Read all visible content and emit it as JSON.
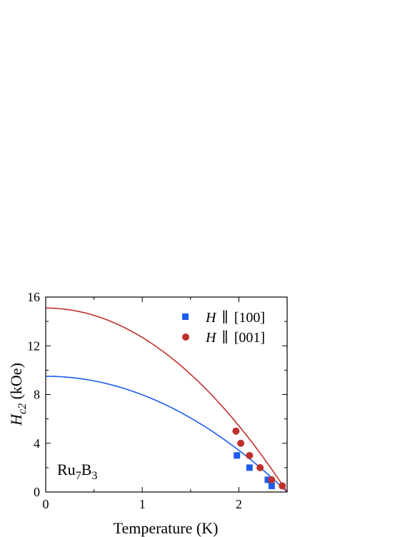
{
  "chart_data": {
    "type": "scatter",
    "x_label": "Temperature  (K)",
    "y_label_main": "H",
    "y_label_sub": "c2",
    "y_label_unit": " (kOe)",
    "xlim": [
      0,
      2.5
    ],
    "ylim": [
      0,
      16
    ],
    "x_ticks": [
      0,
      1,
      2
    ],
    "y_ticks": [
      0,
      4,
      8,
      12,
      16
    ],
    "grid": false,
    "legend_position": "top-right",
    "annotation": {
      "main": "Ru",
      "sub1": "7",
      "mid": "B",
      "sub2": "3"
    },
    "series": [
      {
        "name_H": "H",
        "name_dir": "[100]",
        "marker": "square",
        "color": "#1a5cf0",
        "x": [
          1.98,
          2.11,
          2.3,
          2.34
        ],
        "y": [
          3.0,
          2.0,
          1.0,
          0.5
        ]
      },
      {
        "name_H": "H",
        "name_dir": "[001]",
        "marker": "circle",
        "color": "#c0302d",
        "x": [
          1.97,
          2.02,
          2.11,
          2.22,
          2.34,
          2.45
        ],
        "y": [
          5.0,
          4.0,
          3.0,
          2.0,
          1.0,
          0.5
        ]
      }
    ],
    "fits": [
      {
        "color": "#1a5cf0",
        "hc2_zero": 9.5,
        "tc": 2.5
      },
      {
        "color": "#c0302d",
        "hc2_zero": 15.1,
        "tc": 2.5
      }
    ]
  }
}
